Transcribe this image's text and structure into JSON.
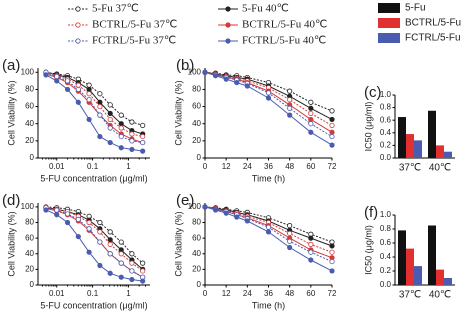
{
  "chart_data": [
    {
      "type": "line",
      "label": "(a)",
      "xscale": "log",
      "xlabel": "5-FU concentration (μg/ml)",
      "ylabel": "Cell Viability (%)",
      "x": [
        0.005,
        0.01,
        0.02,
        0.04,
        0.08,
        0.16,
        0.31,
        0.63,
        1.25,
        2.5
      ],
      "xlim": [
        0.003,
        4
      ],
      "xticks": [
        0.01,
        0.1,
        1
      ],
      "ylim": [
        0,
        105
      ],
      "yticks": [
        0,
        20,
        40,
        60,
        80,
        100
      ],
      "series": [
        {
          "name": "5-Fu 37℃",
          "color": "#222222",
          "dash": true,
          "values": [
            100,
            98,
            96,
            92,
            85,
            75,
            62,
            50,
            42,
            38
          ]
        },
        {
          "name": "5-Fu 40℃",
          "color": "#222222",
          "dash": false,
          "values": [
            100,
            97,
            94,
            88,
            80,
            65,
            52,
            40,
            32,
            28
          ]
        },
        {
          "name": "BCTRL/5-Fu 37℃",
          "color": "#d43a3a",
          "dash": true,
          "values": [
            100,
            96,
            92,
            85,
            75,
            60,
            45,
            35,
            28,
            25
          ]
        },
        {
          "name": "BCTRL/5-Fu 40℃",
          "color": "#d43a3a",
          "dash": false,
          "values": [
            98,
            94,
            88,
            78,
            65,
            50,
            38,
            28,
            22,
            18
          ]
        },
        {
          "name": "FCTRL/5-Fu 37℃",
          "color": "#4a5cb0",
          "dash": true,
          "values": [
            100,
            95,
            90,
            80,
            68,
            50,
            35,
            25,
            20,
            18
          ]
        },
        {
          "name": "FCTRL/5-Fu 40℃",
          "color": "#4a5cb0",
          "dash": false,
          "values": [
            97,
            90,
            80,
            65,
            45,
            25,
            18,
            12,
            10,
            8
          ]
        }
      ]
    },
    {
      "type": "line",
      "label": "(b)",
      "xlabel": "Time (h)",
      "ylabel": "Cell Viability (%)",
      "x": [
        0,
        6,
        12,
        18,
        24,
        36,
        48,
        60,
        72
      ],
      "xlim": [
        0,
        72
      ],
      "xticks": [
        0,
        12,
        24,
        36,
        48,
        60,
        72
      ],
      "ylim": [
        0,
        105
      ],
      "yticks": [
        0,
        20,
        40,
        60,
        80,
        100
      ],
      "series": [
        {
          "color": "#222222",
          "dash": true,
          "values": [
            100,
            99,
            97,
            96,
            94,
            88,
            78,
            65,
            55
          ]
        },
        {
          "color": "#222222",
          "dash": false,
          "values": [
            100,
            98,
            96,
            94,
            92,
            84,
            72,
            58,
            45
          ]
        },
        {
          "color": "#d43a3a",
          "dash": true,
          "values": [
            100,
            98,
            95,
            93,
            90,
            82,
            68,
            52,
            38
          ]
        },
        {
          "color": "#d43a3a",
          "dash": false,
          "values": [
            100,
            97,
            94,
            92,
            88,
            78,
            62,
            45,
            30
          ]
        },
        {
          "color": "#4a5cb0",
          "dash": true,
          "values": [
            100,
            97,
            94,
            91,
            87,
            76,
            58,
            40,
            25
          ]
        },
        {
          "color": "#4a5cb0",
          "dash": false,
          "values": [
            100,
            96,
            92,
            88,
            84,
            70,
            50,
            30,
            15
          ]
        }
      ]
    },
    {
      "type": "bar",
      "label": "(c)",
      "ylabel": "IC50 (μg/ml)",
      "categories": [
        "37℃",
        "40℃"
      ],
      "ylim": [
        0,
        1.0
      ],
      "yticks": [
        {
          "value": 0,
          "label": "0.0"
        },
        0.2,
        0.4,
        0.6,
        0.8,
        {
          "value": 1,
          "label": "1.0"
        }
      ],
      "series": [
        {
          "name": "5-Fu",
          "color": "#111111",
          "values": [
            0.65,
            0.75
          ]
        },
        {
          "name": "BCTRL/5-Fu",
          "color": "#e03030",
          "values": [
            0.38,
            0.2
          ]
        },
        {
          "name": "FCTRL/5-Fu",
          "color": "#4a5cb0",
          "values": [
            0.28,
            0.1
          ]
        }
      ]
    },
    {
      "type": "line",
      "label": "(d)",
      "xscale": "log",
      "xlabel": "5-FU concentration (μg/ml)",
      "ylabel": "Cell Viability (%)",
      "x": [
        0.005,
        0.01,
        0.02,
        0.04,
        0.08,
        0.16,
        0.31,
        0.63,
        1.25,
        2.5
      ],
      "xlim": [
        0.003,
        4
      ],
      "xticks": [
        0.01,
        0.1,
        1
      ],
      "ylim": [
        0,
        105
      ],
      "yticks": [
        0,
        20,
        40,
        60,
        80,
        100
      ],
      "series": [
        {
          "color": "#222222",
          "dash": true,
          "values": [
            100,
            99,
            97,
            94,
            88,
            80,
            68,
            55,
            40,
            28
          ]
        },
        {
          "color": "#222222",
          "dash": false,
          "values": [
            99,
            97,
            94,
            90,
            83,
            72,
            58,
            45,
            32,
            20
          ]
        },
        {
          "color": "#d43a3a",
          "dash": true,
          "values": [
            100,
            97,
            94,
            88,
            80,
            68,
            52,
            40,
            28,
            18
          ]
        },
        {
          "color": "#d43a3a",
          "dash": false,
          "values": [
            98,
            95,
            90,
            82,
            70,
            55,
            40,
            28,
            18,
            10
          ]
        },
        {
          "color": "#4a5cb0",
          "dash": true,
          "values": [
            99,
            96,
            91,
            84,
            72,
            55,
            40,
            28,
            18,
            10
          ]
        },
        {
          "color": "#4a5cb0",
          "dash": false,
          "values": [
            96,
            90,
            80,
            62,
            42,
            25,
            15,
            10,
            7,
            5
          ]
        }
      ]
    },
    {
      "type": "line",
      "label": "(e)",
      "xlabel": "Time (h)",
      "ylabel": "Cell Viability (%)",
      "x": [
        0,
        6,
        12,
        18,
        24,
        36,
        48,
        60,
        72
      ],
      "xlim": [
        0,
        72
      ],
      "xticks": [
        0,
        12,
        24,
        36,
        48,
        60,
        72
      ],
      "ylim": [
        0,
        105
      ],
      "yticks": [
        0,
        20,
        40,
        60,
        80,
        100
      ],
      "series": [
        {
          "color": "#222222",
          "dash": true,
          "values": [
            100,
            99,
            97,
            95,
            93,
            86,
            76,
            65,
            55
          ]
        },
        {
          "color": "#222222",
          "dash": false,
          "values": [
            100,
            98,
            96,
            93,
            90,
            82,
            70,
            60,
            50
          ]
        },
        {
          "color": "#d43a3a",
          "dash": true,
          "values": [
            100,
            98,
            95,
            92,
            88,
            80,
            66,
            52,
            42
          ]
        },
        {
          "color": "#d43a3a",
          "dash": false,
          "values": [
            100,
            97,
            94,
            90,
            86,
            76,
            60,
            45,
            35
          ]
        },
        {
          "color": "#4a5cb0",
          "dash": true,
          "values": [
            100,
            97,
            94,
            90,
            85,
            74,
            56,
            42,
            30
          ]
        },
        {
          "color": "#4a5cb0",
          "dash": false,
          "values": [
            100,
            96,
            92,
            87,
            82,
            68,
            48,
            32,
            18
          ]
        }
      ]
    },
    {
      "type": "bar",
      "label": "(f)",
      "ylabel": "IC50 (μg/ml)",
      "categories": [
        "37℃",
        "40℃"
      ],
      "ylim": [
        0,
        1.0
      ],
      "yticks": [
        {
          "value": 0,
          "label": "0.0"
        },
        0.2,
        0.4,
        0.6,
        0.8,
        {
          "value": 1,
          "label": "1.0"
        }
      ],
      "series": [
        {
          "color": "#111111",
          "values": [
            0.78,
            0.85
          ]
        },
        {
          "color": "#e03030",
          "values": [
            0.52,
            0.22
          ]
        },
        {
          "color": "#4a5cb0",
          "values": [
            0.27,
            0.1
          ]
        }
      ]
    }
  ]
}
